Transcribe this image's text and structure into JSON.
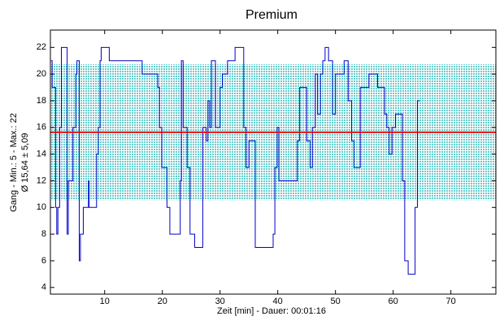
{
  "chart_data": {
    "type": "line",
    "step": "post",
    "title": "Premium",
    "xlabel": "Zeit [min] - Dauer: 00:01:16",
    "ylabel": [
      "Gang - Min.: 5 - Max.: 22",
      "Ø 15,64 ± 5,09"
    ],
    "xlim": [
      0.6,
      77.8
    ],
    "ylim": [
      3.5,
      23.3
    ],
    "xticks": [
      10,
      20,
      30,
      40,
      50,
      60,
      70
    ],
    "yticks": [
      4,
      6,
      8,
      10,
      12,
      14,
      16,
      18,
      20,
      22
    ],
    "mean": 15.64,
    "std": 5.09,
    "mean_color": "#ff0000",
    "band_color": "#66cccc",
    "series": [
      {
        "color": "#0000cc",
        "x": [
          0.7,
          0.9,
          1.5,
          1.7,
          1.9,
          2.2,
          2.5,
          3.5,
          3.7,
          4.5,
          5.0,
          5.2,
          5.6,
          5.8,
          6.3,
          7.2,
          7.3,
          8.6,
          8.9,
          9.2,
          9.4,
          10.8,
          16.5,
          19.2,
          19.5,
          19.9,
          20.8,
          21.3,
          23.1,
          23.3,
          23.6,
          24.3,
          24.8,
          25.6,
          27.0,
          27.6,
          27.9,
          28.2,
          28.5,
          29.2,
          30.0,
          30.4,
          31.3,
          32.6,
          34.1,
          34.5,
          35.0,
          36.1,
          39.2,
          39.5,
          39.9,
          40.2,
          43.4,
          43.8,
          45.0,
          45.6,
          46.0,
          46.5,
          46.9,
          47.4,
          47.8,
          48.2,
          48.8,
          49.5,
          50.0,
          51.5,
          52.2,
          52.8,
          53.2,
          54.3,
          55.8,
          57.3,
          58.5,
          58.9,
          59.3,
          59.8,
          60.4,
          61.6,
          62.0,
          62.6,
          63.8,
          64.2,
          64.6
        ],
        "values": [
          21,
          19,
          10,
          8,
          10,
          16,
          22,
          8,
          12,
          16,
          20,
          21,
          6,
          8,
          10,
          12,
          10,
          14,
          16,
          21,
          22,
          21,
          20,
          19,
          16,
          13,
          10,
          8,
          12,
          21,
          16,
          13,
          8,
          7,
          16,
          15,
          18,
          16,
          21,
          16,
          19,
          20,
          21,
          22,
          16,
          13,
          15,
          7,
          8,
          13,
          16,
          12,
          15,
          19,
          15,
          13,
          16,
          20,
          17,
          20,
          21,
          22,
          21,
          17,
          20,
          21,
          18,
          15,
          13,
          19,
          20,
          19,
          17,
          16,
          14,
          16,
          17,
          12,
          6,
          5,
          10,
          18,
          18
        ]
      }
    ]
  }
}
